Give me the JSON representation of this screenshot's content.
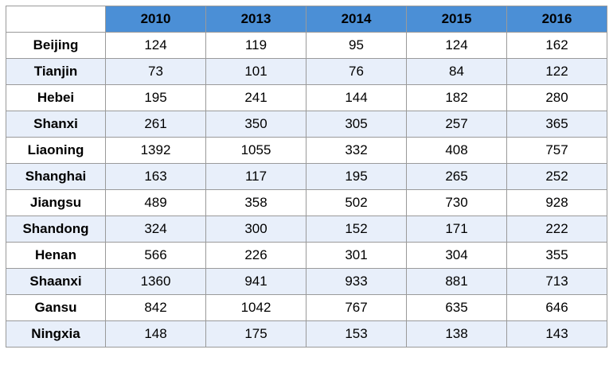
{
  "chart_data": {
    "type": "table",
    "columns": [
      "2010",
      "2013",
      "2014",
      "2015",
      "2016"
    ],
    "rows": [
      {
        "label": "Beijing",
        "values": [
          "124",
          "119",
          "95",
          "124",
          "162"
        ]
      },
      {
        "label": "Tianjin",
        "values": [
          "73",
          "101",
          "76",
          "84",
          "122"
        ]
      },
      {
        "label": "Hebei",
        "values": [
          "195",
          "241",
          "144",
          "182",
          "280"
        ]
      },
      {
        "label": "Shanxi",
        "values": [
          "261",
          "350",
          "305",
          "257",
          "365"
        ]
      },
      {
        "label": "Liaoning",
        "values": [
          "1392",
          "1055",
          "332",
          "408",
          "757"
        ]
      },
      {
        "label": "Shanghai",
        "values": [
          "163",
          "117",
          "195",
          "265",
          "252"
        ]
      },
      {
        "label": "Jiangsu",
        "values": [
          "489",
          "358",
          "502",
          "730",
          "928"
        ]
      },
      {
        "label": "Shandong",
        "values": [
          "324",
          "300",
          "152",
          "171",
          "222"
        ]
      },
      {
        "label": "Henan",
        "values": [
          "566",
          "226",
          "301",
          "304",
          "355"
        ]
      },
      {
        "label": "Shaanxi",
        "values": [
          "1360",
          "941",
          "933",
          "881",
          "713"
        ]
      },
      {
        "label": "Gansu",
        "values": [
          "842",
          "1042",
          "767",
          "635",
          "646"
        ]
      },
      {
        "label": "Ningxia",
        "values": [
          "148",
          "175",
          "153",
          "138",
          "143"
        ]
      }
    ]
  },
  "colors": {
    "header_fill": "#4b8fd6",
    "alt_row_fill": "#e8effa",
    "row_fill": "#ffffff",
    "grid_line": "#9a9a9a"
  }
}
